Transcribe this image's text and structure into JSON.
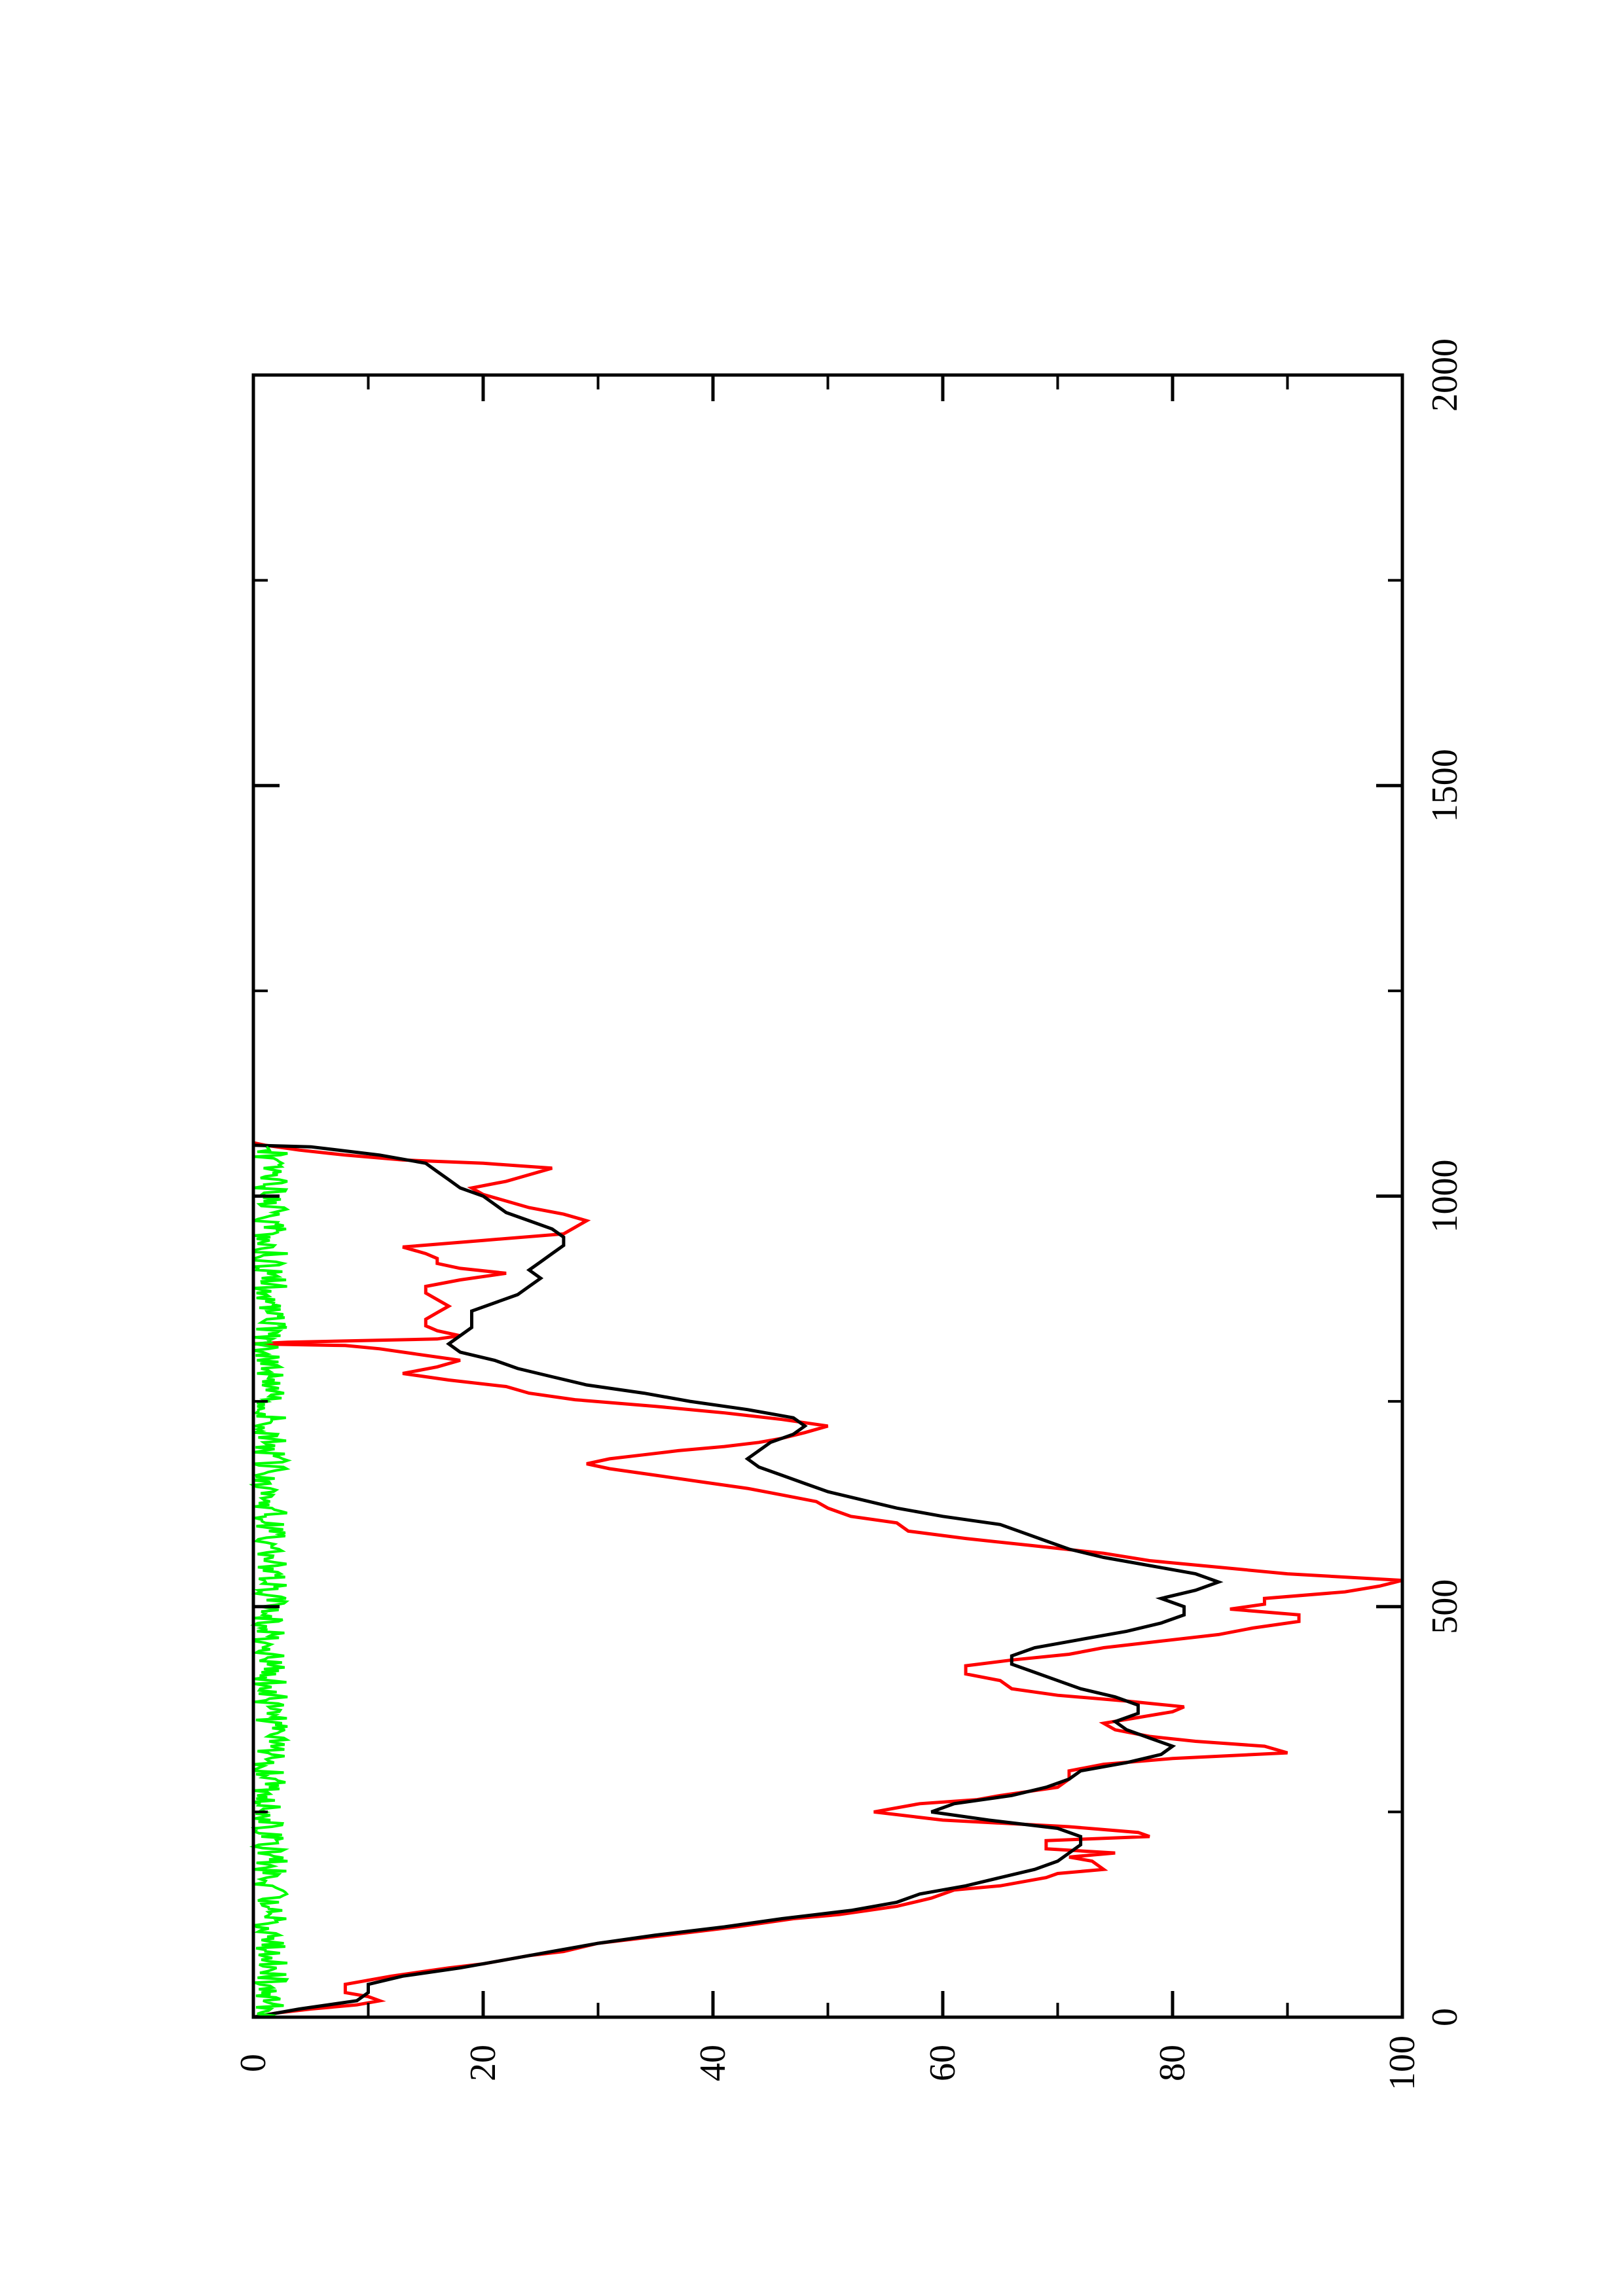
{
  "chart_data": {
    "type": "line",
    "orientation": "page rotated 90 degrees counter-clockwise (x axis runs bottom-to-top, y axis runs left-to-right)",
    "title": "",
    "xlabel": "",
    "ylabel": "",
    "xlim": [
      0,
      2000
    ],
    "ylim": [
      0,
      100
    ],
    "x_ticks": [
      0,
      500,
      1000,
      1500,
      2000
    ],
    "x_tick_labels": [
      "0",
      "500",
      "1000",
      "1500",
      "2000"
    ],
    "x_minor_ticks": [
      250,
      750,
      1250,
      1750
    ],
    "y_ticks": [
      0,
      20,
      40,
      60,
      80,
      100
    ],
    "y_tick_labels": [
      "0",
      "20",
      "40",
      "60",
      "80",
      "100"
    ],
    "y_minor_ticks": [
      10,
      30,
      50,
      70,
      90
    ],
    "grid": false,
    "legend": "none",
    "series": [
      {
        "color": "#ff0000",
        "points": [
          [
            0,
            0
          ],
          [
            5,
            2
          ],
          [
            10,
            5
          ],
          [
            15,
            9
          ],
          [
            20,
            11
          ],
          [
            25,
            10
          ],
          [
            30,
            8
          ],
          [
            40,
            8
          ],
          [
            50,
            12
          ],
          [
            60,
            17
          ],
          [
            65,
            20
          ],
          [
            70,
            22
          ],
          [
            75,
            24
          ],
          [
            80,
            27
          ],
          [
            90,
            30
          ],
          [
            100,
            36
          ],
          [
            110,
            42
          ],
          [
            120,
            47
          ],
          [
            125,
            51
          ],
          [
            135,
            56
          ],
          [
            145,
            59
          ],
          [
            155,
            61
          ],
          [
            160,
            65
          ],
          [
            170,
            69
          ],
          [
            175,
            70
          ],
          [
            180,
            74
          ],
          [
            190,
            73
          ],
          [
            195,
            71
          ],
          [
            200,
            75
          ],
          [
            205,
            69
          ],
          [
            215,
            69
          ],
          [
            220,
            78
          ],
          [
            225,
            77
          ],
          [
            232,
            71
          ],
          [
            240,
            60
          ],
          [
            250,
            54
          ],
          [
            260,
            58
          ],
          [
            265,
            63
          ],
          [
            270,
            65
          ],
          [
            280,
            70
          ],
          [
            290,
            71
          ],
          [
            300,
            71
          ],
          [
            308,
            74
          ],
          [
            315,
            80
          ],
          [
            322,
            90
          ],
          [
            330,
            88
          ],
          [
            336,
            82
          ],
          [
            342,
            78
          ],
          [
            350,
            75
          ],
          [
            358,
            74
          ],
          [
            365,
            77
          ],
          [
            372,
            80
          ],
          [
            378,
            81
          ],
          [
            385,
            76
          ],
          [
            392,
            70
          ],
          [
            400,
            66
          ],
          [
            410,
            65
          ],
          [
            418,
            62
          ],
          [
            428,
            62
          ],
          [
            435,
            66
          ],
          [
            442,
            71
          ],
          [
            450,
            74
          ],
          [
            458,
            79
          ],
          [
            466,
            84
          ],
          [
            474,
            87
          ],
          [
            482,
            91
          ],
          [
            490,
            91
          ],
          [
            497,
            85
          ],
          [
            503,
            88
          ],
          [
            510,
            88
          ],
          [
            518,
            95
          ],
          [
            525,
            98
          ],
          [
            532,
            100
          ],
          [
            540,
            90
          ],
          [
            548,
            84
          ],
          [
            556,
            78
          ],
          [
            565,
            74
          ],
          [
            574,
            68
          ],
          [
            583,
            62
          ],
          [
            592,
            57
          ],
          [
            602,
            56
          ],
          [
            610,
            52
          ],
          [
            620,
            50
          ],
          [
            628,
            49
          ],
          [
            636,
            46
          ],
          [
            644,
            43
          ],
          [
            652,
            39
          ],
          [
            660,
            35
          ],
          [
            668,
            31
          ],
          [
            674,
            29
          ],
          [
            680,
            31
          ],
          [
            685,
            34
          ],
          [
            690,
            37
          ],
          [
            695,
            41
          ],
          [
            700,
            44
          ],
          [
            705,
            46
          ],
          [
            712,
            48
          ],
          [
            720,
            50
          ],
          [
            728,
            46
          ],
          [
            736,
            41
          ],
          [
            744,
            35
          ],
          [
            752,
            28
          ],
          [
            760,
            24
          ],
          [
            768,
            22
          ],
          [
            776,
            17
          ],
          [
            784,
            13
          ],
          [
            792,
            16
          ],
          [
            800,
            18
          ],
          [
            808,
            14
          ],
          [
            814,
            11
          ],
          [
            818,
            8
          ],
          [
            820,
            0
          ],
          [
            822,
            3
          ],
          [
            826,
            16
          ],
          [
            830,
            18
          ],
          [
            836,
            16
          ],
          [
            842,
            15
          ],
          [
            850,
            15
          ],
          [
            858,
            16
          ],
          [
            866,
            17
          ],
          [
            874,
            16
          ],
          [
            882,
            15
          ],
          [
            890,
            15
          ],
          [
            898,
            18
          ],
          [
            906,
            22
          ],
          [
            912,
            18
          ],
          [
            918,
            16
          ],
          [
            924,
            16
          ],
          [
            930,
            15
          ],
          [
            938,
            13
          ],
          [
            946,
            20
          ],
          [
            954,
            27
          ],
          [
            962,
            28
          ],
          [
            970,
            29
          ],
          [
            978,
            27
          ],
          [
            986,
            24
          ],
          [
            994,
            22
          ],
          [
            1002,
            20
          ],
          [
            1010,
            19
          ],
          [
            1018,
            22
          ],
          [
            1026,
            24
          ],
          [
            1034,
            26
          ],
          [
            1040,
            20
          ],
          [
            1044,
            13
          ],
          [
            1050,
            8
          ],
          [
            1056,
            4
          ],
          [
            1062,
            1
          ],
          [
            1065,
            0
          ]
        ]
      },
      {
        "color": "#000000",
        "points": [
          [
            0,
            0
          ],
          [
            10,
            4
          ],
          [
            20,
            9
          ],
          [
            30,
            10
          ],
          [
            40,
            10
          ],
          [
            50,
            13
          ],
          [
            60,
            18
          ],
          [
            70,
            22
          ],
          [
            80,
            26
          ],
          [
            90,
            30
          ],
          [
            100,
            35
          ],
          [
            110,
            41
          ],
          [
            120,
            46
          ],
          [
            130,
            52
          ],
          [
            140,
            56
          ],
          [
            150,
            58
          ],
          [
            160,
            62
          ],
          [
            170,
            65
          ],
          [
            180,
            68
          ],
          [
            190,
            70
          ],
          [
            200,
            71
          ],
          [
            210,
            72
          ],
          [
            220,
            72
          ],
          [
            230,
            70
          ],
          [
            240,
            64
          ],
          [
            250,
            59
          ],
          [
            260,
            61
          ],
          [
            270,
            66
          ],
          [
            280,
            69
          ],
          [
            290,
            71
          ],
          [
            300,
            72
          ],
          [
            310,
            76
          ],
          [
            320,
            79
          ],
          [
            330,
            80
          ],
          [
            340,
            78
          ],
          [
            350,
            76
          ],
          [
            360,
            75
          ],
          [
            370,
            77
          ],
          [
            380,
            77
          ],
          [
            390,
            75
          ],
          [
            400,
            72
          ],
          [
            410,
            70
          ],
          [
            420,
            68
          ],
          [
            430,
            66
          ],
          [
            440,
            66
          ],
          [
            450,
            68
          ],
          [
            460,
            72
          ],
          [
            470,
            76
          ],
          [
            480,
            79
          ],
          [
            490,
            81
          ],
          [
            500,
            81
          ],
          [
            510,
            79
          ],
          [
            520,
            82
          ],
          [
            530,
            84
          ],
          [
            540,
            82
          ],
          [
            550,
            78
          ],
          [
            560,
            74
          ],
          [
            570,
            71
          ],
          [
            580,
            69
          ],
          [
            590,
            67
          ],
          [
            600,
            65
          ],
          [
            610,
            60
          ],
          [
            620,
            56
          ],
          [
            630,
            53
          ],
          [
            640,
            50
          ],
          [
            650,
            48
          ],
          [
            660,
            46
          ],
          [
            670,
            44
          ],
          [
            680,
            43
          ],
          [
            690,
            44
          ],
          [
            700,
            45
          ],
          [
            710,
            47
          ],
          [
            720,
            48
          ],
          [
            730,
            47
          ],
          [
            740,
            43
          ],
          [
            750,
            38
          ],
          [
            760,
            34
          ],
          [
            770,
            29
          ],
          [
            780,
            26
          ],
          [
            790,
            23
          ],
          [
            800,
            21
          ],
          [
            810,
            18
          ],
          [
            820,
            17
          ],
          [
            830,
            18
          ],
          [
            840,
            19
          ],
          [
            850,
            19
          ],
          [
            860,
            19
          ],
          [
            870,
            21
          ],
          [
            880,
            23
          ],
          [
            890,
            24
          ],
          [
            900,
            25
          ],
          [
            910,
            24
          ],
          [
            920,
            25
          ],
          [
            930,
            26
          ],
          [
            940,
            27
          ],
          [
            950,
            27
          ],
          [
            960,
            26
          ],
          [
            970,
            24
          ],
          [
            980,
            22
          ],
          [
            990,
            21
          ],
          [
            1000,
            20
          ],
          [
            1010,
            18
          ],
          [
            1020,
            17
          ],
          [
            1030,
            16
          ],
          [
            1040,
            15
          ],
          [
            1050,
            11
          ],
          [
            1060,
            5
          ],
          [
            1062,
            0
          ]
        ]
      },
      {
        "color": "#00ff00",
        "style": "noise band",
        "range_y": [
          0,
          3
        ],
        "x_range": [
          0,
          1060
        ],
        "mean": 1.5
      }
    ]
  }
}
